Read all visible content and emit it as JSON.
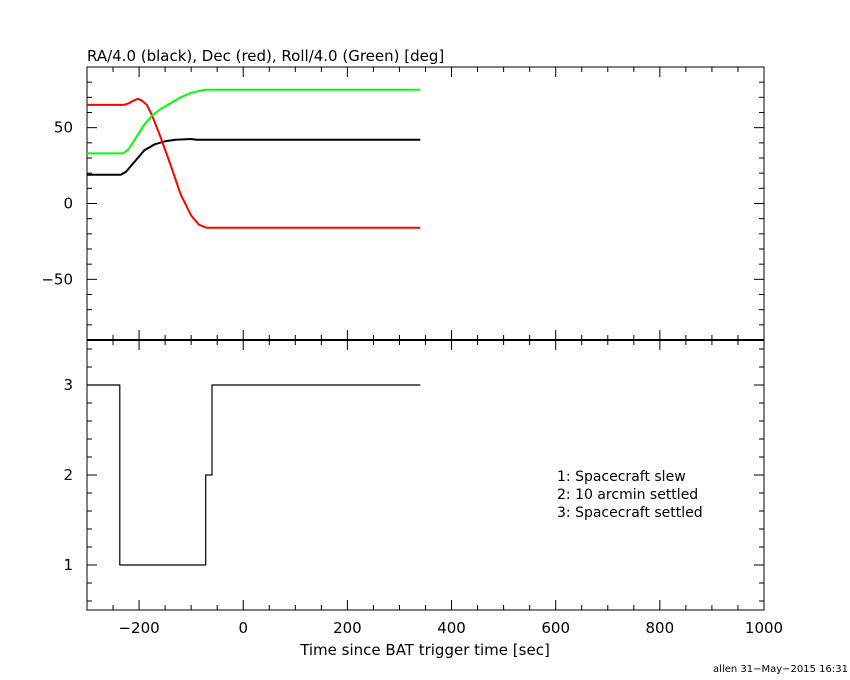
{
  "chart_data": [
    {
      "type": "line",
      "title": "RA/4.0 (black), Dec (red), Roll/4.0 (Green) [deg]",
      "xlim": [
        -300,
        1000
      ],
      "ylim": [
        -90,
        90
      ],
      "yticks": [
        {
          "value": 50,
          "label": "50"
        },
        {
          "value": 0,
          "label": "0"
        },
        {
          "value": -50,
          "label": "−50"
        }
      ],
      "series": [
        {
          "color": "#000000",
          "points": [
            [
              -300,
              19
            ],
            [
              -235,
              19
            ],
            [
              -225,
              21
            ],
            [
              -210,
              27
            ],
            [
              -190,
              35
            ],
            [
              -170,
              39
            ],
            [
              -150,
              41
            ],
            [
              -130,
              42
            ],
            [
              -100,
              42.5
            ],
            [
              -90,
              42
            ],
            [
              340,
              42
            ]
          ]
        },
        {
          "color": "#ff0000",
          "points": [
            [
              -300,
              65
            ],
            [
              -230,
              65
            ],
            [
              -220,
              66
            ],
            [
              -210,
              68
            ],
            [
              -202,
              69
            ],
            [
              -195,
              68
            ],
            [
              -185,
              65
            ],
            [
              -175,
              58
            ],
            [
              -160,
              45
            ],
            [
              -140,
              26
            ],
            [
              -120,
              6
            ],
            [
              -100,
              -8
            ],
            [
              -85,
              -14
            ],
            [
              -70,
              -16
            ],
            [
              340,
              -16
            ]
          ]
        },
        {
          "color": "#00ff00",
          "points": [
            [
              -300,
              33
            ],
            [
              -230,
              33
            ],
            [
              -220,
              36
            ],
            [
              -205,
              44
            ],
            [
              -190,
              52
            ],
            [
              -175,
              58
            ],
            [
              -160,
              62
            ],
            [
              -140,
              66
            ],
            [
              -120,
              70
            ],
            [
              -100,
              73
            ],
            [
              -75,
              75
            ],
            [
              340,
              75
            ]
          ]
        }
      ]
    },
    {
      "type": "line",
      "xlim": [
        -300,
        1000
      ],
      "ylim": [
        0.5,
        3.5
      ],
      "xlabel": "Time since BAT trigger time [sec]",
      "xticks": [
        {
          "value": -200,
          "label": "−200"
        },
        {
          "value": 0,
          "label": "0"
        },
        {
          "value": 200,
          "label": "200"
        },
        {
          "value": 400,
          "label": "400"
        },
        {
          "value": 600,
          "label": "600"
        },
        {
          "value": 800,
          "label": "800"
        },
        {
          "value": 1000,
          "label": "1000"
        }
      ],
      "yticks": [
        {
          "value": 3,
          "label": "3"
        },
        {
          "value": 2,
          "label": "2"
        },
        {
          "value": 1,
          "label": "1"
        }
      ],
      "series": [
        {
          "color": "#000000",
          "step": true,
          "points": [
            [
              -300,
              3
            ],
            [
              -237,
              3
            ],
            [
              -237,
              1
            ],
            [
              -72,
              1
            ],
            [
              -72,
              2
            ],
            [
              -60,
              2
            ],
            [
              -60,
              3
            ],
            [
              340,
              3
            ]
          ]
        }
      ],
      "annotations": [
        "1: Spacecraft slew",
        "2: 10 arcmin settled",
        "3: Spacecraft settled"
      ]
    }
  ],
  "footer": "allen 31−May−2015 16:31"
}
